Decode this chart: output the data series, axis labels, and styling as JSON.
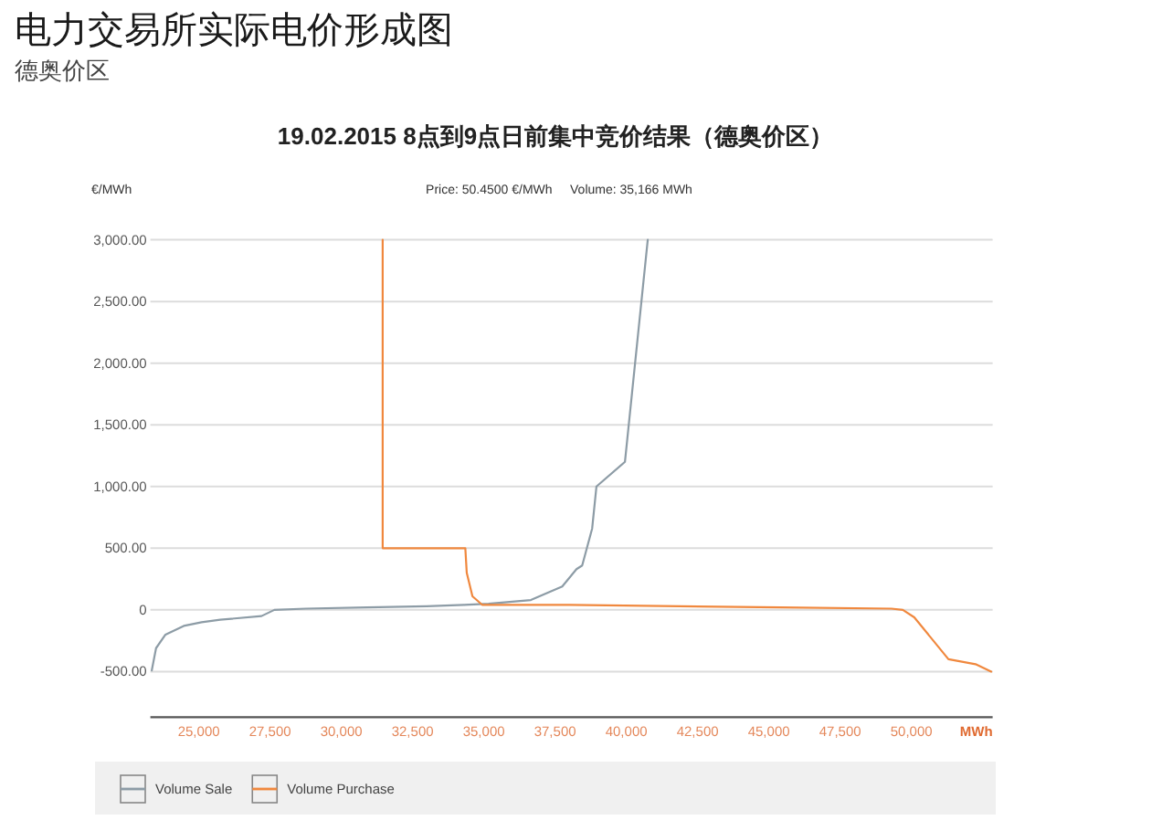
{
  "chart_data": {
    "type": "line",
    "title": "电力交易所实际电价形成图",
    "subtitle": "德奥价区",
    "annotations": [
      "19.02.2015 8点到9点日前集中竞价结果（德奥价区）",
      "Price: 50.4500 €/MWh     Volume: 35,166 MWh"
    ],
    "ylabel": "€/MWh",
    "xlabel": "MWh",
    "xlim": [
      23300,
      52850
    ],
    "xticks": [
      {
        "value": 25000,
        "label": "25,000"
      },
      {
        "value": 27500,
        "label": "27,500"
      },
      {
        "value": 30000,
        "label": "30,000"
      },
      {
        "value": 32500,
        "label": "32,500"
      },
      {
        "value": 35000,
        "label": "35,000"
      },
      {
        "value": 37500,
        "label": "37,500"
      },
      {
        "value": 40000,
        "label": "40,000"
      },
      {
        "value": 42500,
        "label": "42,500"
      },
      {
        "value": 45000,
        "label": "45,000"
      },
      {
        "value": 47500,
        "label": "47,500"
      },
      {
        "value": 50000,
        "label": "50,000"
      }
    ],
    "ylim": [
      -870,
      3000
    ],
    "yticks": [
      {
        "value": -500,
        "label": "-500.00"
      },
      0,
      {
        "value": 500,
        "label": "500.00"
      },
      {
        "value": 1000,
        "label": "1,000.00"
      },
      {
        "value": 1500,
        "label": "1,500.00"
      },
      {
        "value": 2000,
        "label": "2,000.00"
      },
      {
        "value": 2500,
        "label": "2,500.00"
      },
      {
        "value": 3000,
        "label": "3,000.00"
      }
    ],
    "grid": "y",
    "legend": "bottom",
    "line_style": "solid",
    "series": [
      {
        "name": "Volume Sale",
        "color": "#8d9ca6",
        "x": [
          23350,
          23500,
          23830,
          24470,
          25100,
          25750,
          27200,
          27650,
          28750,
          30900,
          33000,
          34300,
          35166,
          36650,
          37750,
          38250,
          38450,
          38800,
          38950,
          39950,
          40750
        ],
        "values": [
          -490,
          -310,
          -200,
          -130,
          -100,
          -80,
          -50,
          0,
          10,
          20,
          30,
          40,
          50,
          80,
          190,
          330,
          360,
          660,
          1000,
          1200,
          3000
        ]
      },
      {
        "name": "Volume Purchase",
        "color": "#f0883e",
        "x": [
          31450,
          31450,
          34350,
          34400,
          34600,
          34950,
          38000,
          45400,
          49300,
          49700,
          50100,
          51300,
          52250,
          52800
        ],
        "values": [
          3000,
          500,
          500,
          300,
          110,
          40,
          40,
          20,
          10,
          0,
          -60,
          -400,
          -440,
          -500
        ]
      }
    ]
  }
}
